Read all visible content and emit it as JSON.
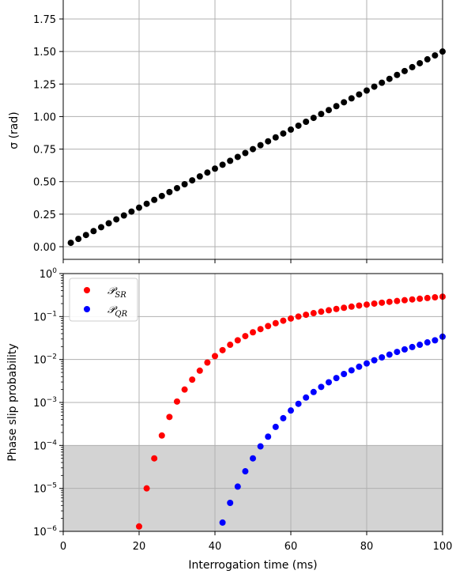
{
  "chart_data": [
    {
      "type": "scatter",
      "panel": "top",
      "title": "",
      "xlabel": "",
      "ylabel": "σ (rad)",
      "xlim": [
        0,
        100
      ],
      "ylim": [
        -0.05,
        1.9
      ],
      "yticks": [
        0.0,
        0.25,
        0.5,
        0.75,
        1.0,
        1.25,
        1.5,
        1.75
      ],
      "ytick_labels": [
        "0.00",
        "0.25",
        "0.50",
        "0.75",
        "1.00",
        "1.25",
        "1.50",
        "1.75"
      ],
      "xticks": [
        0,
        20,
        40,
        60,
        80,
        100
      ],
      "xtick_labels": [],
      "grid": true,
      "series": [
        {
          "color": "#000000",
          "x": [
            2,
            4,
            6,
            8,
            10,
            12,
            14,
            16,
            18,
            20,
            22,
            24,
            26,
            28,
            30,
            32,
            34,
            36,
            38,
            40,
            42,
            44,
            46,
            48,
            50,
            52,
            54,
            56,
            58,
            60,
            62,
            64,
            66,
            68,
            70,
            72,
            74,
            76,
            78,
            80,
            82,
            84,
            86,
            88,
            90,
            92,
            94,
            96,
            98,
            100
          ],
          "y": [
            0.03,
            0.06,
            0.09,
            0.12,
            0.15,
            0.18,
            0.21,
            0.24,
            0.27,
            0.3,
            0.33,
            0.36,
            0.39,
            0.42,
            0.45,
            0.48,
            0.51,
            0.54,
            0.57,
            0.6,
            0.63,
            0.66,
            0.69,
            0.72,
            0.75,
            0.78,
            0.81,
            0.84,
            0.87,
            0.9,
            0.93,
            0.96,
            0.99,
            1.02,
            1.05,
            1.08,
            1.11,
            1.14,
            1.17,
            1.2,
            1.23,
            1.26,
            1.29,
            1.32,
            1.35,
            1.38,
            1.41,
            1.44,
            1.47,
            1.5
          ]
        }
      ]
    },
    {
      "type": "scatter",
      "panel": "bottom",
      "title": "",
      "xlabel": "Interrogation time (ms)",
      "ylabel": "Phase slip probability",
      "xlim": [
        0,
        100
      ],
      "ylim_log10": [
        -6,
        0
      ],
      "y_scale": "log",
      "yticks_log10": [
        -6,
        -5,
        -4,
        -3,
        -2,
        -1,
        0
      ],
      "xticks": [
        0,
        20,
        40,
        60,
        80,
        100
      ],
      "xtick_labels": [
        "0",
        "20",
        "40",
        "60",
        "80",
        "100"
      ],
      "grid": true,
      "shaded_region": {
        "y_from": 1e-06,
        "y_to": 0.0001,
        "color": "#d3d3d3"
      },
      "legend": {
        "position": "top-left"
      },
      "series": [
        {
          "name": "𝒫",
          "name_sub": "SR",
          "color": "#ff0000",
          "x": [
            20,
            22,
            24,
            26,
            28,
            30,
            32,
            34,
            36,
            38,
            40,
            42,
            44,
            46,
            48,
            50,
            52,
            54,
            56,
            58,
            60,
            62,
            64,
            66,
            68,
            70,
            72,
            74,
            76,
            78,
            80,
            82,
            84,
            86,
            88,
            90,
            92,
            94,
            96,
            98,
            100
          ],
          "y": [
            1.3e-06,
            1e-05,
            5e-05,
            0.00017,
            0.00046,
            0.00105,
            0.002,
            0.0034,
            0.0055,
            0.0085,
            0.012,
            0.0165,
            0.022,
            0.028,
            0.035,
            0.043,
            0.051,
            0.06,
            0.07,
            0.08,
            0.09,
            0.1,
            0.11,
            0.12,
            0.13,
            0.14,
            0.15,
            0.16,
            0.17,
            0.18,
            0.19,
            0.2,
            0.21,
            0.22,
            0.23,
            0.24,
            0.25,
            0.26,
            0.27,
            0.28,
            0.29
          ]
        },
        {
          "name": "𝒫",
          "name_sub": "QR",
          "color": "#0000ff",
          "x": [
            42,
            44,
            46,
            48,
            50,
            52,
            54,
            56,
            58,
            60,
            62,
            64,
            66,
            68,
            70,
            72,
            74,
            76,
            78,
            80,
            82,
            84,
            86,
            88,
            90,
            92,
            94,
            96,
            98,
            100
          ],
          "y": [
            1.6e-06,
            4.6e-06,
            1.1e-05,
            2.5e-05,
            5e-05,
            9.5e-05,
            0.00016,
            0.00027,
            0.00043,
            0.00065,
            0.00093,
            0.0013,
            0.00175,
            0.0023,
            0.00295,
            0.0037,
            0.0046,
            0.0056,
            0.0068,
            0.0081,
            0.0096,
            0.0112,
            0.013,
            0.015,
            0.0172,
            0.0195,
            0.022,
            0.025,
            0.028,
            0.034
          ]
        }
      ]
    }
  ]
}
